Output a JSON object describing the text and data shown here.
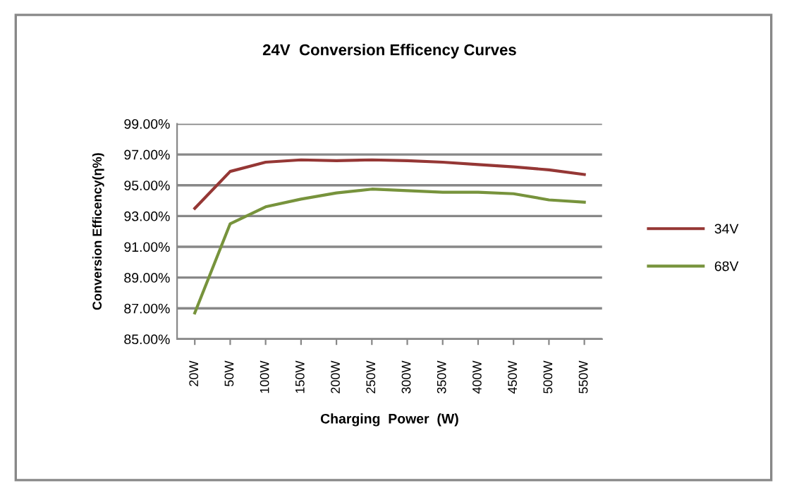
{
  "chart_data": {
    "type": "line",
    "title": "24V  Conversion Efficency Curves",
    "xlabel": "Charging  Power  (W)",
    "ylabel": "Conversion Efficency(η%)",
    "categories": [
      "20W",
      "50W",
      "100W",
      "150W",
      "200W",
      "250W",
      "300W",
      "350W",
      "400W",
      "450W",
      "500W",
      "550W"
    ],
    "series": [
      {
        "name": "34V",
        "color": "#953735",
        "values": [
          93.5,
          95.9,
          96.5,
          96.65,
          96.6,
          96.65,
          96.6,
          96.5,
          96.35,
          96.2,
          96.0,
          95.7
        ]
      },
      {
        "name": "68V",
        "color": "#77933c",
        "values": [
          86.7,
          92.5,
          93.6,
          94.1,
          94.5,
          94.75,
          94.65,
          94.55,
          94.55,
          94.45,
          94.05,
          93.9
        ]
      }
    ],
    "ylim": [
      85,
      99
    ],
    "yticks": [
      {
        "value": 85,
        "label": "85.00%"
      },
      {
        "value": 87,
        "label": "87.00%"
      },
      {
        "value": 89,
        "label": "89.00%"
      },
      {
        "value": 91,
        "label": "91.00%"
      },
      {
        "value": 93,
        "label": "93.00%"
      },
      {
        "value": 95,
        "label": "95.00%"
      },
      {
        "value": 97,
        "label": "97.00%"
      },
      {
        "value": 99,
        "label": "99.00%"
      }
    ],
    "grid": "y",
    "legend": "right",
    "marker": "none",
    "line_style": "solid"
  }
}
